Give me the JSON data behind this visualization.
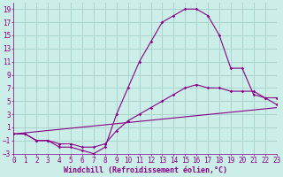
{
  "xlabel": "Windchill (Refroidissement éolien,°C)",
  "bg_color": "#cceee8",
  "grid_color": "#aad4ce",
  "line_color": "#880088",
  "xlim": [
    0,
    23
  ],
  "ylim": [
    -3,
    20
  ],
  "xticks": [
    0,
    1,
    2,
    3,
    4,
    5,
    6,
    7,
    8,
    9,
    10,
    11,
    12,
    13,
    14,
    15,
    16,
    17,
    18,
    19,
    20,
    21,
    22,
    23
  ],
  "yticks": [
    -3,
    -1,
    1,
    3,
    5,
    7,
    9,
    11,
    13,
    15,
    17,
    19
  ],
  "line1_x": [
    0,
    1,
    2,
    3,
    4,
    5,
    6,
    7,
    8,
    9,
    10,
    11,
    12,
    13,
    14,
    15,
    16,
    17,
    18,
    19,
    20,
    21,
    22,
    23
  ],
  "line1_y": [
    0,
    0,
    -1,
    -1,
    -2,
    -2,
    -2.5,
    -3,
    -2,
    3,
    7,
    11,
    14,
    17,
    18,
    19,
    19,
    18,
    15,
    10,
    10,
    6,
    5.5,
    4.5
  ],
  "line2_x": [
    0,
    1,
    2,
    3,
    4,
    5,
    6,
    7,
    8,
    9,
    10,
    11,
    12,
    13,
    14,
    15,
    16,
    17,
    18,
    19,
    20,
    21,
    22,
    23
  ],
  "line2_y": [
    0,
    0,
    -1,
    -1,
    -1.5,
    -1.5,
    -2,
    -2,
    -1.5,
    0.5,
    2,
    3,
    4,
    5,
    6,
    7,
    7.5,
    7,
    7,
    6.5,
    6.5,
    6.5,
    5.5,
    5.5
  ],
  "line3_x": [
    0,
    23
  ],
  "line3_y": [
    0,
    4
  ],
  "font_size": 7,
  "label_font_size": 6,
  "tick_font_size": 5.5
}
